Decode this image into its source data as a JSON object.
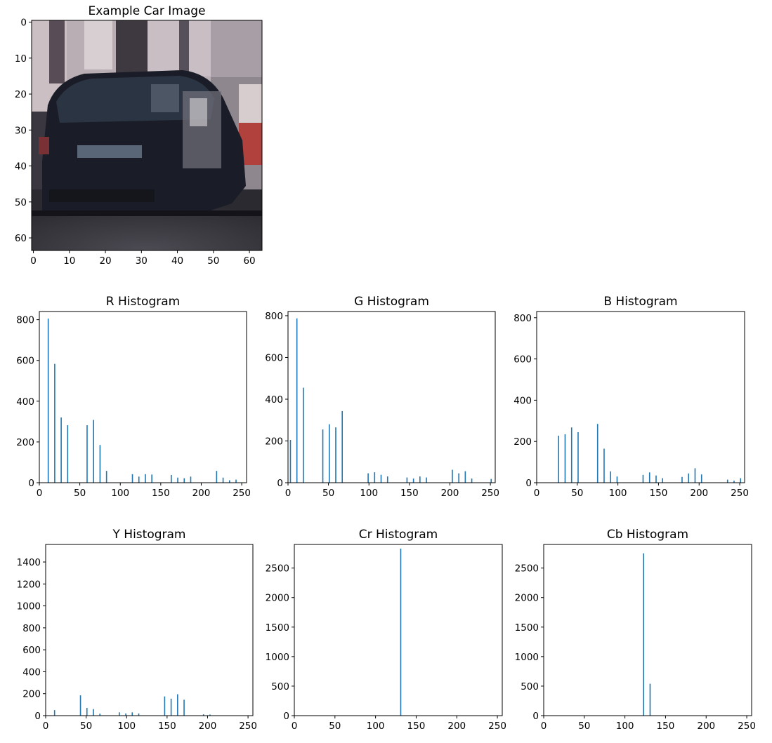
{
  "colors": {
    "bar": "#1f77b4",
    "axes": "#000000",
    "background": "#ffffff"
  },
  "image_panel": {
    "title": "Example Car Image",
    "xlim": [
      0,
      64
    ],
    "ylim": [
      0,
      64
    ],
    "xticks": [
      0,
      10,
      20,
      30,
      40,
      50,
      60
    ],
    "yticks": [
      0,
      10,
      20,
      30,
      40,
      50,
      60
    ],
    "image_description": "car-photo"
  },
  "chart_data": [
    {
      "type": "bar",
      "title": "R Histogram",
      "xlim": [
        0,
        256
      ],
      "ylim": [
        0,
        840
      ],
      "xticks": [
        0,
        50,
        100,
        150,
        200,
        250
      ],
      "yticks": [
        0,
        200,
        400,
        600,
        800
      ],
      "x": [
        11,
        19,
        27,
        35,
        59,
        67,
        75,
        83,
        115,
        123,
        131,
        139,
        163,
        171,
        179,
        187,
        219,
        227,
        235,
        243
      ],
      "values": [
        805,
        583,
        320,
        282,
        282,
        308,
        185,
        58,
        42,
        30,
        42,
        40,
        38,
        25,
        22,
        30,
        58,
        25,
        12,
        15
      ]
    },
    {
      "type": "bar",
      "title": "G Histogram",
      "xlim": [
        0,
        256
      ],
      "ylim": [
        0,
        820
      ],
      "xticks": [
        0,
        50,
        100,
        150,
        200,
        250
      ],
      "yticks": [
        0,
        200,
        400,
        600,
        800
      ],
      "x": [
        3,
        11,
        19,
        43,
        51,
        59,
        67,
        99,
        107,
        115,
        123,
        147,
        155,
        163,
        171,
        203,
        211,
        219,
        227,
        251
      ],
      "values": [
        205,
        787,
        455,
        255,
        280,
        265,
        343,
        45,
        50,
        38,
        30,
        25,
        20,
        30,
        25,
        62,
        45,
        55,
        20,
        18
      ]
    },
    {
      "type": "bar",
      "title": "B Histogram",
      "xlim": [
        0,
        256
      ],
      "ylim": [
        0,
        830
      ],
      "xticks": [
        0,
        50,
        100,
        150,
        200,
        250
      ],
      "yticks": [
        0,
        200,
        400,
        600,
        800
      ],
      "x": [
        27,
        35,
        43,
        51,
        75,
        83,
        91,
        99,
        131,
        139,
        147,
        155,
        179,
        187,
        195,
        203,
        235,
        243,
        251
      ],
      "values": [
        228,
        235,
        268,
        245,
        285,
        165,
        55,
        30,
        38,
        50,
        35,
        22,
        28,
        45,
        70,
        40,
        15,
        10,
        22
      ]
    },
    {
      "type": "bar",
      "title": "Y Histogram",
      "xlim": [
        0,
        256
      ],
      "ylim": [
        0,
        1560
      ],
      "xticks": [
        0,
        50,
        100,
        150,
        200,
        250
      ],
      "yticks": [
        0,
        200,
        400,
        600,
        800,
        1000,
        1200,
        1400
      ],
      "x": [
        11,
        43,
        51,
        59,
        67,
        91,
        99,
        107,
        115,
        147,
        155,
        163,
        171,
        195,
        203
      ],
      "values": [
        50,
        185,
        70,
        60,
        18,
        30,
        20,
        30,
        20,
        175,
        155,
        195,
        145,
        12,
        10
      ]
    },
    {
      "type": "bar",
      "title": "Cr Histogram",
      "xlim": [
        0,
        256
      ],
      "ylim": [
        0,
        2900
      ],
      "xticks": [
        0,
        50,
        100,
        150,
        200,
        250
      ],
      "yticks": [
        0,
        500,
        1000,
        1500,
        2000,
        2500
      ],
      "x": [
        131
      ],
      "values": [
        2830
      ]
    },
    {
      "type": "bar",
      "title": "Cb Histogram",
      "xlim": [
        0,
        256
      ],
      "ylim": [
        0,
        2900
      ],
      "xticks": [
        0,
        50,
        100,
        150,
        200,
        250
      ],
      "yticks": [
        0,
        500,
        1000,
        1500,
        2000,
        2500
      ],
      "x": [
        123,
        131
      ],
      "values": [
        2750,
        540
      ]
    }
  ]
}
